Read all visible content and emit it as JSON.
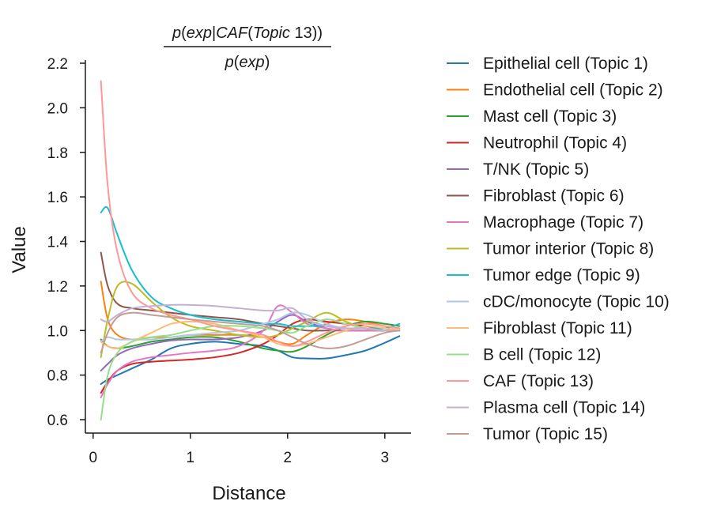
{
  "chart_data": {
    "type": "line",
    "title_numerator": {
      "parts": [
        {
          "t": "p",
          "i": true
        },
        {
          "t": "(",
          "i": false
        },
        {
          "t": "exp",
          "i": true
        },
        {
          "t": "|",
          "i": false
        },
        {
          "t": "CAF",
          "i": true
        },
        {
          "t": "(",
          "i": false
        },
        {
          "t": "Topic",
          "i": true
        },
        {
          "t": " 13))",
          "i": false
        }
      ]
    },
    "title_denominator": {
      "parts": [
        {
          "t": "p",
          "i": true
        },
        {
          "t": "(",
          "i": false
        },
        {
          "t": "exp",
          "i": true
        },
        {
          "t": ")",
          "i": false
        }
      ]
    },
    "xlabel": "Distance",
    "ylabel": "Value",
    "xlim": [
      -0.08,
      3.27
    ],
    "ylim": [
      0.55,
      2.23
    ],
    "xticks": [
      0,
      1,
      2,
      3
    ],
    "xtick_labels": [
      "0",
      "1",
      "2",
      "3"
    ],
    "yticks": [
      0.6,
      0.8,
      1.0,
      1.2,
      1.4,
      1.6,
      1.8,
      2.0,
      2.2
    ],
    "ytick_labels": [
      "0.6",
      "0.8",
      "1.0",
      "1.2",
      "1.4",
      "1.6",
      "1.8",
      "2.0",
      "2.2"
    ],
    "grid": false,
    "legend_position": "right",
    "x": [
      0.08,
      0.15,
      0.25,
      0.4,
      0.6,
      0.8,
      1.0,
      1.25,
      1.5,
      1.75,
      1.9,
      2.05,
      2.2,
      2.4,
      2.6,
      2.8,
      3.0,
      3.15
    ],
    "series": [
      {
        "name": "Epithelial cell (Topic 1)",
        "color": "#1f77b4",
        "values": [
          0.76,
          0.78,
          0.8,
          0.83,
          0.87,
          0.92,
          0.94,
          0.95,
          0.94,
          0.93,
          0.91,
          0.88,
          0.875,
          0.875,
          0.89,
          0.91,
          0.945,
          0.975
        ]
      },
      {
        "name": "Endothelial cell (Topic 2)",
        "color": "#ff7f0e",
        "values": [
          1.22,
          1.05,
          0.98,
          0.96,
          0.97,
          0.97,
          0.98,
          0.98,
          0.98,
          0.97,
          0.95,
          0.94,
          0.98,
          1.03,
          1.05,
          1.04,
          1.02,
          1.01
        ]
      },
      {
        "name": "Mast cell (Topic 3)",
        "color": "#2ca02c",
        "values": [
          0.96,
          0.93,
          0.92,
          0.93,
          0.95,
          0.96,
          0.97,
          0.97,
          0.95,
          0.92,
          0.91,
          0.905,
          0.93,
          0.98,
          1.02,
          1.04,
          1.03,
          1.02
        ]
      },
      {
        "name": "Neutrophil (Topic 4)",
        "color": "#d62728",
        "values": [
          0.72,
          0.77,
          0.82,
          0.85,
          0.86,
          0.865,
          0.87,
          0.88,
          0.9,
          0.94,
          0.98,
          1.03,
          1.05,
          1.04,
          1.03,
          1.02,
          1.01,
          1.0
        ]
      },
      {
        "name": "T/NK (Topic 5)",
        "color": "#9467bd",
        "values": [
          0.82,
          0.85,
          0.89,
          0.92,
          0.94,
          0.955,
          0.96,
          0.96,
          0.97,
          1.0,
          1.04,
          1.07,
          1.04,
          1.01,
          1.0,
          1.0,
          1.0,
          1.0
        ]
      },
      {
        "name": "Fibroblast (Topic 6)",
        "color": "#8c564b",
        "values": [
          1.35,
          1.2,
          1.12,
          1.1,
          1.09,
          1.08,
          1.07,
          1.06,
          1.05,
          1.03,
          1.02,
          1.01,
          1.0,
          1.0,
          1.0,
          1.0,
          1.0,
          1.0
        ]
      },
      {
        "name": "Macrophage (Topic 7)",
        "color": "#e377c2",
        "values": [
          0.7,
          0.76,
          0.82,
          0.86,
          0.88,
          0.89,
          0.9,
          0.91,
          0.93,
          1.0,
          1.11,
          1.08,
          1.03,
          1.01,
          1.0,
          1.0,
          1.0,
          1.0
        ]
      },
      {
        "name": "Tumor interior (Topic 8)",
        "color": "#bcbd22",
        "values": [
          0.88,
          1.05,
          1.2,
          1.21,
          1.13,
          1.06,
          1.02,
          1.0,
          0.98,
          0.97,
          0.98,
          1.01,
          1.04,
          1.08,
          1.04,
          1.01,
          1.0,
          1.0
        ]
      },
      {
        "name": "Tumor edge (Topic 9)",
        "color": "#17becf",
        "values": [
          1.53,
          1.55,
          1.43,
          1.27,
          1.15,
          1.1,
          1.07,
          1.05,
          1.04,
          1.03,
          1.03,
          1.02,
          1.02,
          1.02,
          1.01,
          1.01,
          1.01,
          1.03
        ]
      },
      {
        "name": "cDC/monocyte (Topic 10)",
        "color": "#aec7e8",
        "values": [
          0.95,
          0.97,
          0.96,
          0.96,
          0.96,
          0.97,
          0.98,
          0.99,
          1.0,
          1.03,
          1.05,
          1.08,
          1.07,
          1.03,
          1.01,
          1.01,
          1.0,
          1.0
        ]
      },
      {
        "name": "Fibroblast (Topic 11)",
        "color": "#ffbb78",
        "values": [
          0.95,
          0.93,
          0.92,
          0.95,
          0.99,
          1.03,
          1.04,
          1.03,
          1.0,
          0.97,
          0.94,
          0.93,
          0.94,
          0.97,
          1.0,
          1.02,
          1.01,
          1.0
        ]
      },
      {
        "name": "B cell (Topic 12)",
        "color": "#98df8a",
        "values": [
          0.6,
          0.8,
          0.9,
          0.95,
          0.97,
          0.98,
          1.0,
          1.02,
          1.02,
          1.01,
          1.0,
          0.99,
          1.02,
          1.05,
          1.03,
          1.01,
          1.0,
          1.0
        ]
      },
      {
        "name": "CAF (Topic 13)",
        "color": "#ff9896",
        "values": [
          2.12,
          1.65,
          1.35,
          1.17,
          1.1,
          1.07,
          1.05,
          1.02,
          1.0,
          0.98,
          0.95,
          0.93,
          0.95,
          0.99,
          1.02,
          1.03,
          1.02,
          1.01
        ]
      },
      {
        "name": "Plasma cell (Topic 14)",
        "color": "#c5b0d5",
        "values": [
          1.05,
          1.04,
          1.07,
          1.1,
          1.11,
          1.115,
          1.115,
          1.11,
          1.1,
          1.09,
          1.09,
          1.1,
          1.05,
          1.02,
          1.01,
          1.01,
          1.0,
          1.0
        ]
      },
      {
        "name": "Tumor (Topic 15)",
        "color": "#c49c94",
        "values": [
          0.9,
          0.99,
          1.06,
          1.08,
          1.07,
          1.06,
          1.05,
          1.04,
          1.03,
          1.02,
          1.0,
          0.97,
          0.94,
          0.92,
          0.93,
          0.96,
          0.99,
          1.0
        ]
      }
    ]
  }
}
